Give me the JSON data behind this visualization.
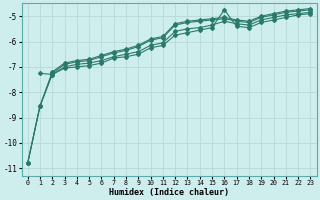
{
  "xlabel": "Humidex (Indice chaleur)",
  "background_color": "#ceeeed",
  "grid_color": "#b8d8d6",
  "line_color": "#2a7a6a",
  "xlim": [
    -0.5,
    23.5
  ],
  "ylim": [
    -11.3,
    -4.5
  ],
  "yticks": [
    -11,
    -10,
    -9,
    -8,
    -7,
    -6,
    -5
  ],
  "xticks": [
    0,
    1,
    2,
    3,
    4,
    5,
    6,
    7,
    8,
    9,
    10,
    11,
    12,
    13,
    14,
    15,
    16,
    17,
    18,
    19,
    20,
    21,
    22,
    23
  ],
  "series": [
    {
      "x": [
        0,
        1,
        2,
        3,
        4,
        5,
        6,
        7,
        8,
        9,
        10,
        11,
        12,
        13,
        14,
        15,
        16,
        17,
        18,
        19,
        20,
        21,
        22,
        23
      ],
      "y": [
        -10.8,
        -8.55,
        -7.25,
        -6.9,
        -6.8,
        -6.75,
        -6.6,
        -6.45,
        -6.35,
        -6.2,
        -5.95,
        -5.85,
        -5.35,
        -5.25,
        -5.2,
        -5.15,
        -5.1,
        -5.2,
        -5.25,
        -5.05,
        -4.95,
        -4.85,
        -4.8,
        -4.75
      ]
    },
    {
      "x": [
        0,
        1,
        2,
        3,
        4,
        5,
        6,
        7,
        8,
        9,
        10,
        11,
        12,
        13,
        14,
        15,
        16,
        17,
        18,
        19,
        20,
        21,
        22,
        23
      ],
      "y": [
        -10.8,
        -8.55,
        -7.3,
        -7.0,
        -6.9,
        -6.85,
        -6.75,
        -6.6,
        -6.5,
        -6.4,
        -6.15,
        -6.05,
        -5.6,
        -5.5,
        -5.45,
        -5.35,
        -5.2,
        -5.3,
        -5.35,
        -5.15,
        -5.05,
        -4.95,
        -4.9,
        -4.85
      ]
    },
    {
      "x": [
        0,
        1,
        2,
        3,
        4,
        5,
        6,
        7,
        8,
        9,
        10,
        11,
        12,
        13,
        14,
        15,
        16,
        17,
        18,
        19,
        20,
        21,
        22,
        23
      ],
      "y": [
        -10.8,
        -8.55,
        -7.2,
        -6.85,
        -6.75,
        -6.7,
        -6.55,
        -6.4,
        -6.3,
        -6.15,
        -5.9,
        -5.8,
        -5.3,
        -5.2,
        -5.15,
        -5.1,
        -5.05,
        -5.15,
        -5.2,
        -5.0,
        -4.9,
        -4.8,
        -4.75,
        -4.7
      ]
    },
    {
      "x": [
        1,
        2,
        3,
        4,
        5,
        6,
        7,
        8,
        9,
        10,
        11,
        12,
        13,
        14,
        15,
        16,
        17,
        18,
        19,
        20,
        21,
        22,
        23
      ],
      "y": [
        -7.25,
        -7.3,
        -7.05,
        -7.0,
        -6.95,
        -6.85,
        -6.65,
        -6.6,
        -6.5,
        -6.25,
        -6.15,
        -5.75,
        -5.65,
        -5.55,
        -5.45,
        -4.75,
        -5.4,
        -5.45,
        -5.25,
        -5.15,
        -5.05,
        -4.95,
        -4.9
      ]
    }
  ]
}
